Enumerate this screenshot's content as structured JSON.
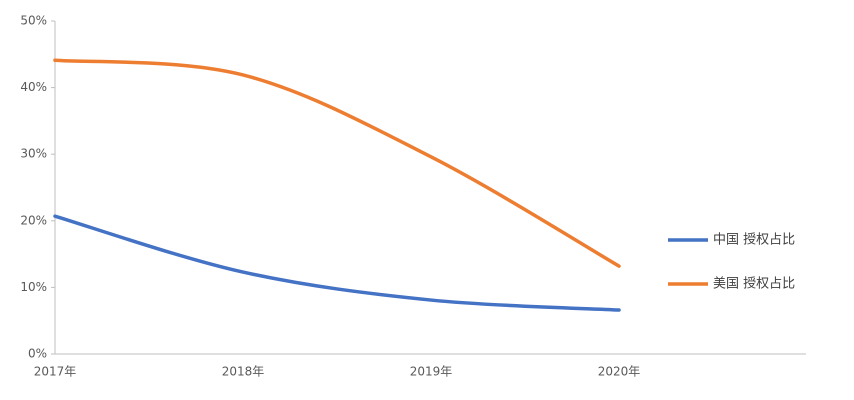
{
  "chart_data": {
    "type": "line",
    "categories": [
      "2017年",
      "2018年",
      "2019年",
      "2020年"
    ],
    "series": [
      {
        "name": "中国 授权占比",
        "color": "#4472c4",
        "values": [
          20.7,
          12.3,
          8.1,
          6.6
        ]
      },
      {
        "name": "美国 授权占比",
        "color": "#ed7d31",
        "values": [
          44.1,
          41.9,
          29.6,
          13.2
        ]
      }
    ],
    "ylim": [
      0,
      50
    ],
    "yticks": [
      {
        "value": 0,
        "label": "0%"
      },
      {
        "value": 10,
        "label": "10%"
      },
      {
        "value": 20,
        "label": "20%"
      },
      {
        "value": 30,
        "label": "30%"
      },
      {
        "value": 40,
        "label": "40%"
      },
      {
        "value": 50,
        "label": "50%"
      }
    ],
    "smooth": true,
    "grid": false,
    "legend": "right"
  }
}
